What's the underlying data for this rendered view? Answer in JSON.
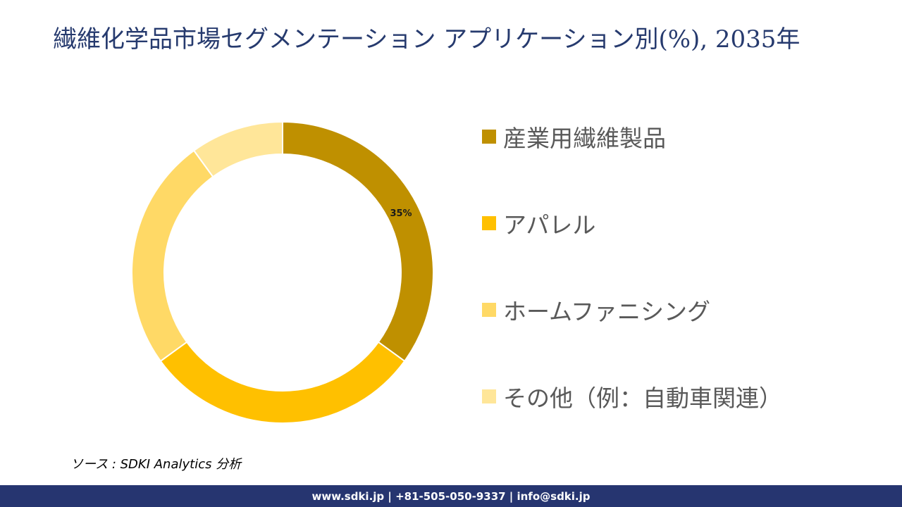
{
  "header": {
    "title": "繊維化学品市場セグメンテーション アプリケーション別(%), 2035年"
  },
  "chart_data": {
    "type": "pie",
    "subtype": "donut",
    "title": "繊維化学品市場セグメンテーション アプリケーション別(%), 2035年",
    "categories": [
      "産業用繊維製品",
      "アパレル",
      "ホームファニシング",
      "その他（例：自動車関連）"
    ],
    "values": [
      35,
      30,
      25,
      10
    ],
    "colors": [
      "#bf9000",
      "#ffc000",
      "#ffd966",
      "#ffe699"
    ],
    "data_labels": [
      {
        "category": "産業用繊維製品",
        "text": "35%"
      }
    ],
    "legend_position": "right",
    "start_angle_deg": 0,
    "direction": "clockwise"
  },
  "legend": {
    "items": [
      {
        "label": "産業用繊維製品",
        "color": "#bf9000"
      },
      {
        "label": "アパレル",
        "color": "#ffc000"
      },
      {
        "label": "ホームファニシング",
        "color": "#ffd966"
      },
      {
        "label": "その他（例：自動車関連）",
        "color": "#ffe699"
      }
    ]
  },
  "labels": {
    "slice_0": "35%"
  },
  "source": {
    "text": "ソース : SDKI Analytics  分析"
  },
  "footer": {
    "text": "www.sdki.jp | +81-505-050-9337 | info@sdki.jp"
  }
}
